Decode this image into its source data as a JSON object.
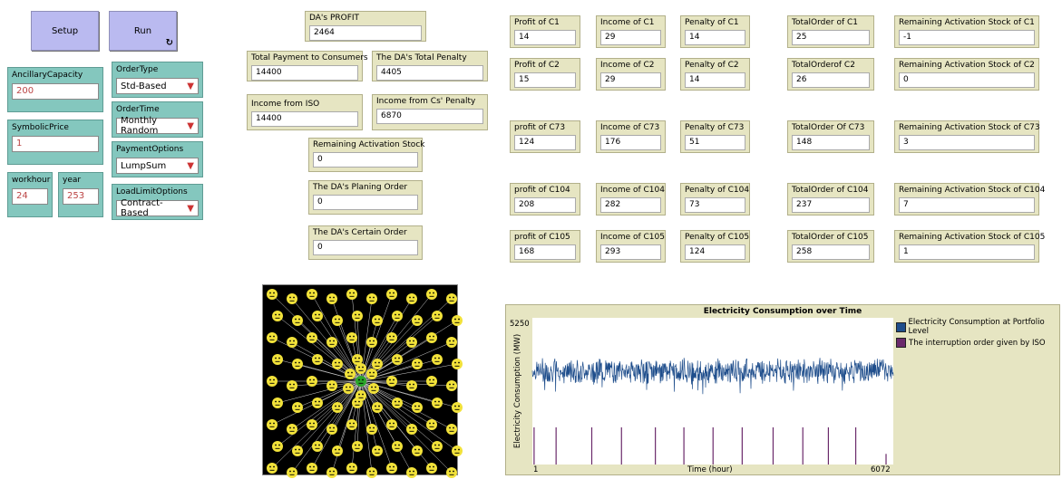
{
  "buttons": {
    "setup_label": "Setup",
    "run_label": "Run",
    "run_forever_icon": "cycle-arrows-icon"
  },
  "inputs": {
    "ancillary_capacity": {
      "label": "AncillaryCapacity",
      "value": "200"
    },
    "symbolic_price": {
      "label": "SymbolicPrice",
      "value": "1"
    },
    "workhour": {
      "label": "workhour",
      "value": "24"
    },
    "year": {
      "label": "year",
      "value": "253"
    }
  },
  "choosers": {
    "order_type": {
      "label": "OrderType",
      "value": "Std-Based"
    },
    "order_time": {
      "label": "OrderTime",
      "value": "Monthly Random"
    },
    "payment_options": {
      "label": "PaymentOptions",
      "value": "LumpSum"
    },
    "load_limit_options": {
      "label": "LoadLimitOptions",
      "value": "Contract-Based"
    }
  },
  "da": {
    "profit": {
      "label": "DA's PROFIT",
      "value": "2464"
    },
    "total_payment": {
      "label": "Total Payment to Consumers",
      "value": "14400"
    },
    "total_penalty": {
      "label": "The DA's Total Penalty",
      "value": "4405"
    },
    "income_iso": {
      "label": "Income from ISO",
      "value": "14400"
    },
    "income_penalty": {
      "label": "Income from Cs' Penalty",
      "value": "6870"
    },
    "remaining_stock": {
      "label": "Remaining Activation Stock",
      "value": "0"
    },
    "planing_order": {
      "label": "The DA's Planing Order",
      "value": "0"
    },
    "certain_order": {
      "label": "The DA's Certain Order",
      "value": "0"
    }
  },
  "consumers": [
    {
      "profit_label": "Profit of C1",
      "profit": "14",
      "income_label": "Income of C1",
      "income": "29",
      "penalty_label": "Penalty of C1",
      "penalty": "14",
      "order_label": "TotalOrder of C1",
      "order": "25",
      "stock_label": "Remaining Activation Stock of C1",
      "stock": "-1"
    },
    {
      "profit_label": "Profit of C2",
      "profit": "15",
      "income_label": "Income of C2",
      "income": "29",
      "penalty_label": "Penalty of C2",
      "penalty": "14",
      "order_label": "TotalOrderof C2",
      "order": "26",
      "stock_label": "Remaining Activation Stock of C2",
      "stock": "0"
    },
    {
      "profit_label": "profit of C73",
      "profit": "124",
      "income_label": "Income of C73",
      "income": "176",
      "penalty_label": "Penalty of C73",
      "penalty": "51",
      "order_label": "TotalOrder Of C73",
      "order": "148",
      "stock_label": "Remaining Activation Stock of C73",
      "stock": "3"
    },
    {
      "profit_label": "profit of C104",
      "profit": "208",
      "income_label": "Income of C104",
      "income": "282",
      "penalty_label": "Penalty of C104",
      "penalty": "73",
      "order_label": "TotalOrder of C104",
      "order": "237",
      "stock_label": "Remaining Activation Stock of C104",
      "stock": "7"
    },
    {
      "profit_label": "profit of C105",
      "profit": "168",
      "income_label": "Income of C105",
      "income": "293",
      "penalty_label": "Penalty of C105",
      "penalty": "124",
      "order_label": "TotalOrder of C105",
      "order": "258",
      "stock_label": "Remaining Activation Stock of C105",
      "stock": "1"
    }
  ],
  "world": {
    "agent_icon": "smiley-face-icon",
    "hub_icon": "green-hub-face-icon",
    "background_color": "#000000",
    "agent_color": "#f2e23a",
    "hub_color": "#2aa52a",
    "link_color": "#cfcfcf"
  },
  "chart_data": {
    "type": "line",
    "title": "Electricity Consumption over Time",
    "xlabel": "Time (hour)",
    "ylabel": "Electricity Consumption (MW)",
    "xlim": [
      1,
      6072
    ],
    "ylim": [
      0,
      5250
    ],
    "x_tick_labels": [
      "1",
      "6072"
    ],
    "y_tick_labels": [
      "5250"
    ],
    "legend_position": "right",
    "series": [
      {
        "name": "Electricity Consumption at Portfolio Level",
        "color": "#1f4e8c",
        "baseline": 3350,
        "noise_range": [
          2800,
          4100
        ]
      },
      {
        "name": "The interruption order given by ISO",
        "color": "#6b2a6b",
        "events_x": [
          30,
          400,
          1000,
          1500,
          2070,
          2550,
          3040,
          3530,
          4050,
          4550,
          4980,
          5440,
          5950
        ],
        "events_y": [
          1330,
          1330,
          1330,
          1330,
          1330,
          1330,
          1330,
          1330,
          1330,
          1330,
          1330,
          1330,
          380
        ]
      }
    ]
  }
}
